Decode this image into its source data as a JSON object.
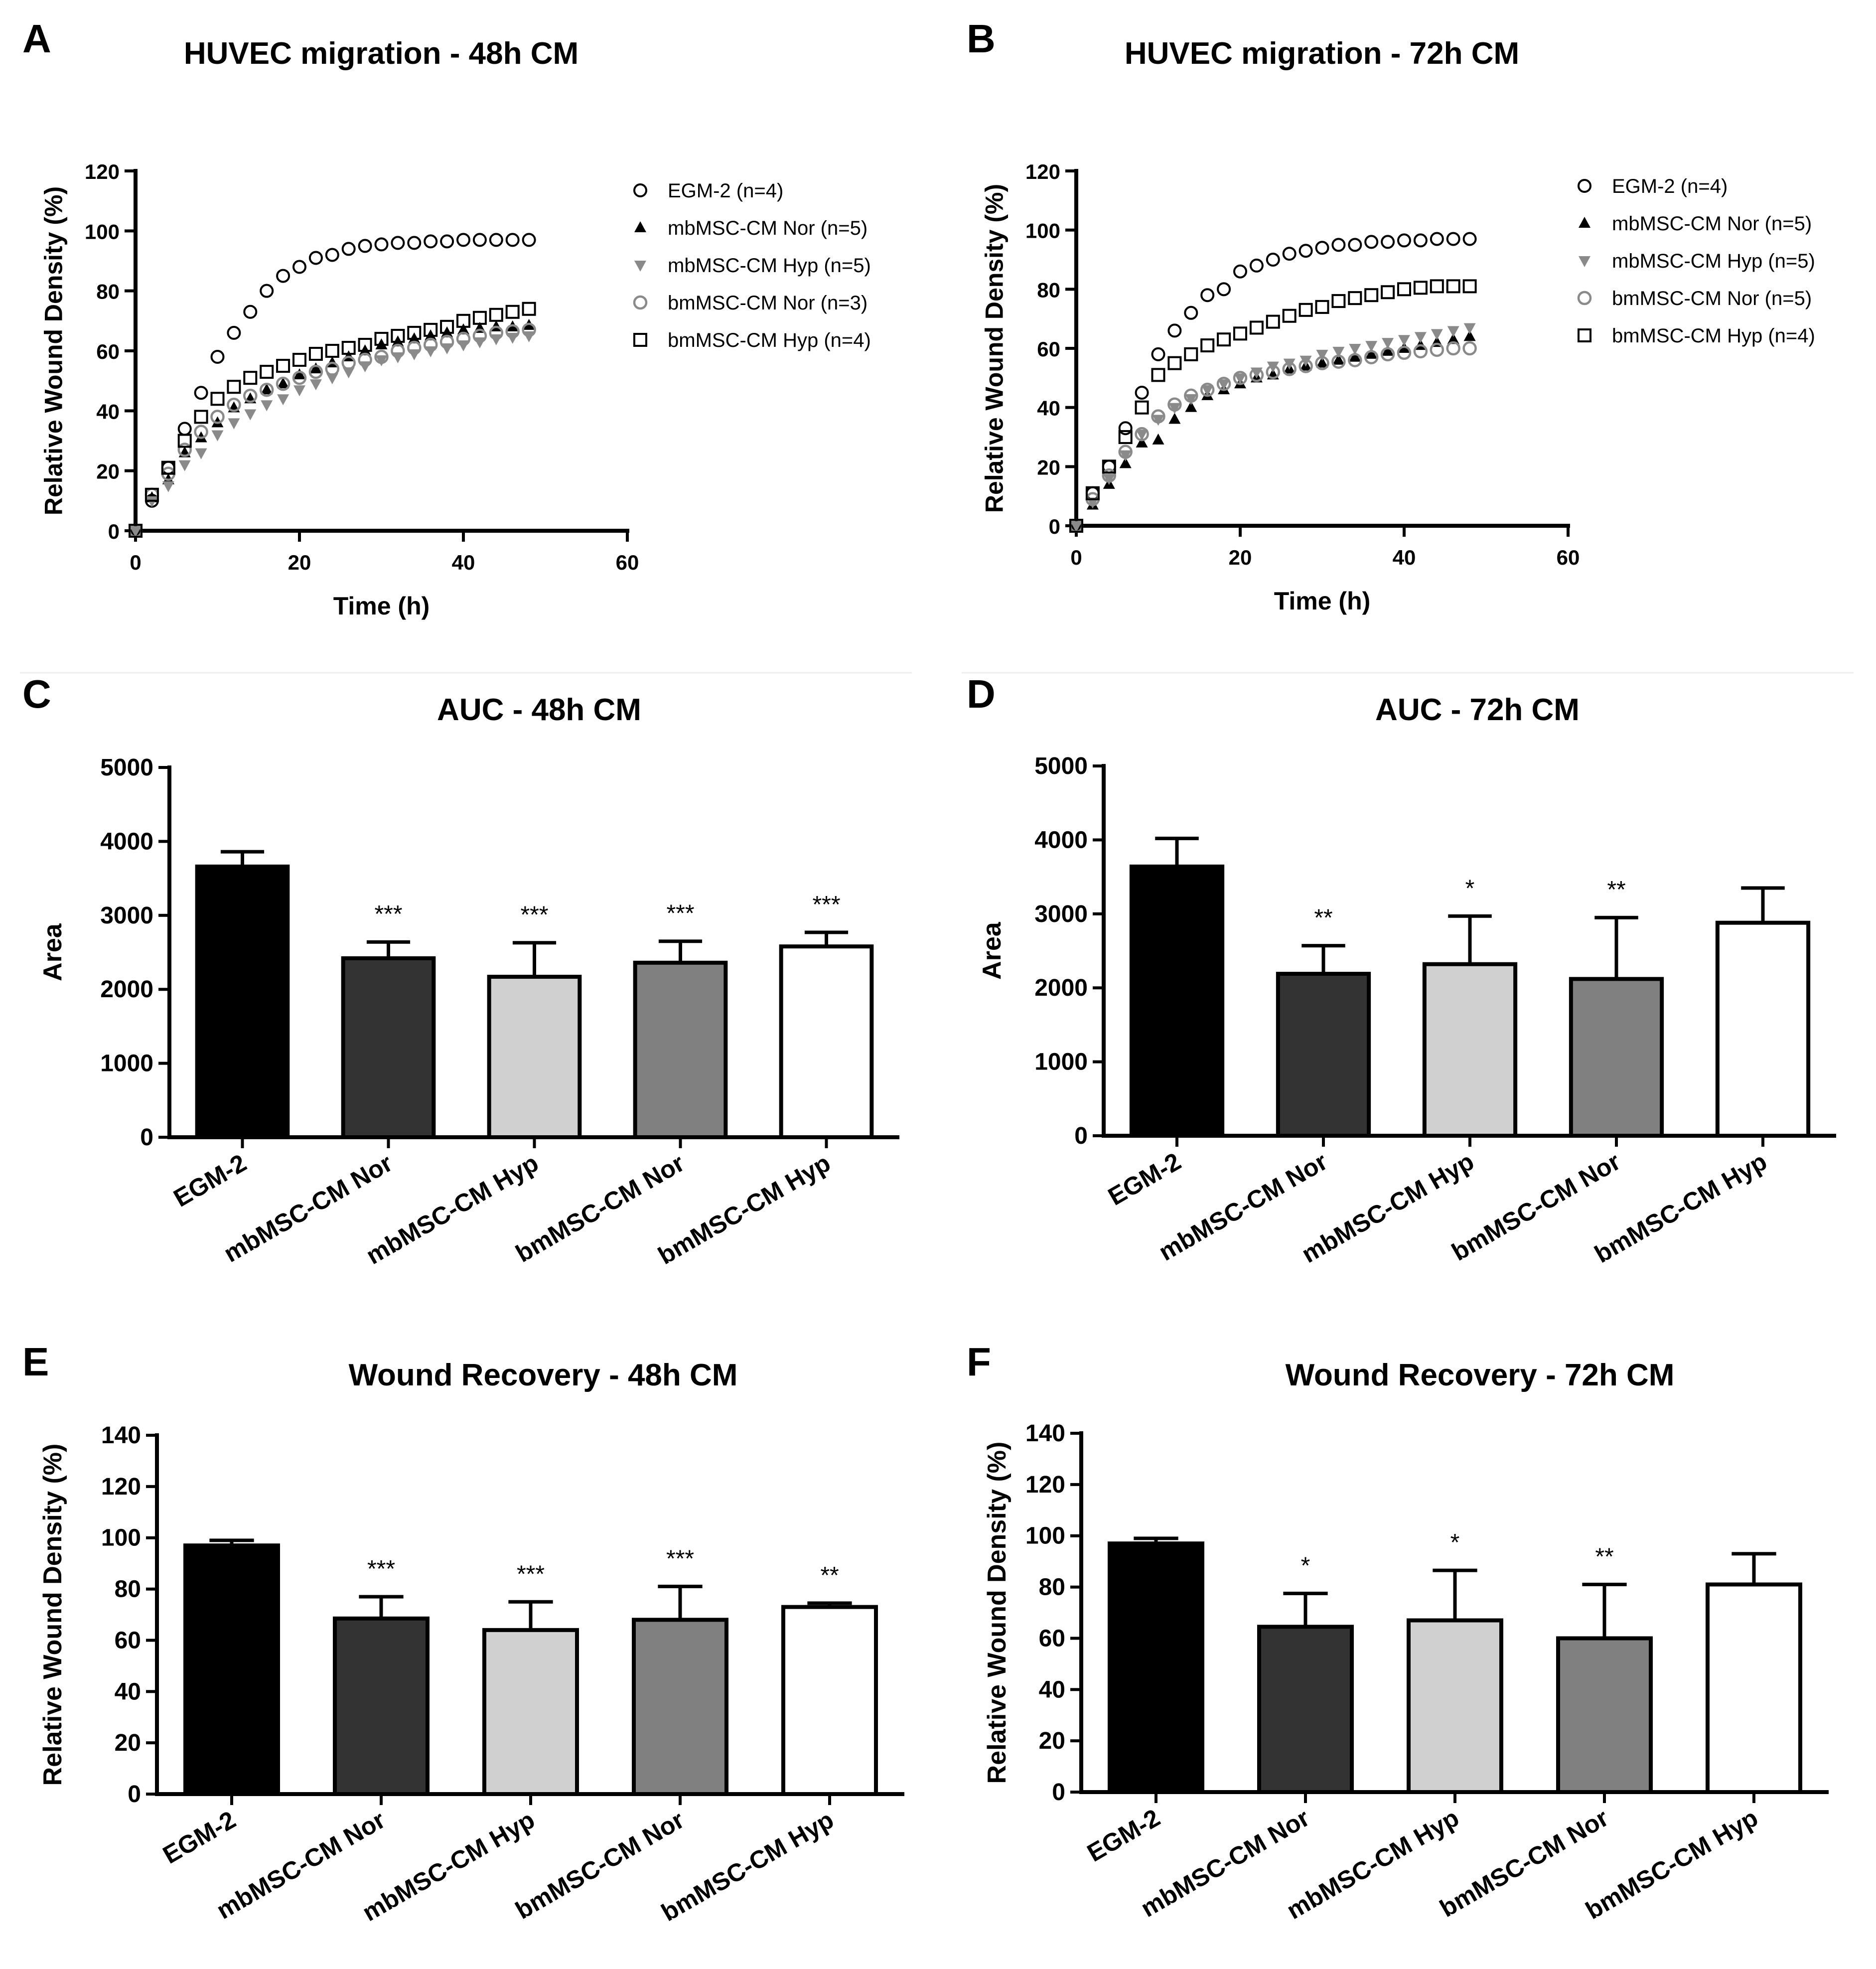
{
  "figure": {
    "background": "#ffffff",
    "group_colors": {
      "EGM-2": "#000000",
      "mbMSC-CM Nor": "#333333",
      "mbMSC-CM Hyp": "#d0d0d0",
      "bmMSC-CM Nor": "#808080",
      "bmMSC-CM Hyp": "#ffffff"
    },
    "marker_styles": {
      "EGM-2": "open-circle-black",
      "mbMSC-CM Nor": "filled-triangle-up-black",
      "mbMSC-CM Hyp": "filled-triangle-down-gray",
      "bmMSC-CM Nor": "open-circle-gray",
      "bmMSC-CM Hyp": "open-square-black"
    }
  },
  "chart_data": [
    {
      "panel": "A",
      "type": "scatter",
      "title": "HUVEC migration  - 48h CM",
      "xlabel": "Time (h)",
      "ylabel": "Relative Wound Density (%)",
      "xlim": [
        0,
        60
      ],
      "ylim": [
        0,
        120
      ],
      "xticks": [
        "0",
        "20",
        "40",
        "60"
      ],
      "yticks": [
        "0",
        "20",
        "40",
        "60",
        "80",
        "100",
        "120"
      ],
      "grid": false,
      "legend_position": "top-right",
      "x": [
        0,
        2,
        4,
        6,
        8,
        10,
        12,
        14,
        16,
        18,
        20,
        22,
        24,
        26,
        28,
        30,
        32,
        34,
        36,
        38,
        40,
        42,
        44,
        46,
        48
      ],
      "series": [
        {
          "name": "EGM-2 (n=4)",
          "marker": "open-circle-black",
          "values": [
            0,
            10,
            21,
            34,
            46,
            58,
            66,
            73,
            80,
            85,
            88,
            91,
            92,
            94,
            95,
            95.5,
            96,
            96,
            96.5,
            96.5,
            97,
            97,
            97,
            97,
            97
          ]
        },
        {
          "name": "mbMSC-CM Nor (n=5)",
          "marker": "filled-triangle-up-black",
          "values": [
            0,
            11,
            17,
            26,
            31,
            36,
            41,
            44,
            47,
            49,
            52,
            54,
            56,
            58,
            60,
            62,
            63,
            64,
            65,
            66,
            67,
            67.5,
            68,
            68,
            68.5
          ]
        },
        {
          "name": "mbMSC-CM Hyp (n=5)",
          "marker": "filled-triangle-down-gray",
          "values": [
            0,
            10,
            15,
            22,
            26,
            32,
            36,
            39,
            42,
            44,
            47,
            49,
            51,
            53,
            55,
            57,
            58,
            59,
            60,
            61,
            62,
            63,
            64,
            64.5,
            65
          ]
        },
        {
          "name": "bmMSC-CM Nor (n=3)",
          "marker": "open-circle-gray",
          "values": [
            0,
            12,
            19,
            27,
            33,
            38,
            42,
            45,
            47,
            49,
            51,
            53,
            54,
            56,
            57,
            58,
            60,
            61,
            62,
            63,
            64,
            65,
            66,
            66.5,
            67
          ]
        },
        {
          "name": "bmMSC-CM Hyp (n=4)",
          "marker": "open-square-black",
          "values": [
            0,
            12,
            21,
            30,
            38,
            44,
            48,
            51,
            53,
            55,
            57,
            59,
            60,
            61,
            62,
            64,
            65,
            66,
            67,
            68,
            70,
            71,
            72,
            73,
            74
          ]
        }
      ]
    },
    {
      "panel": "B",
      "type": "scatter",
      "title": "HUVEC migration - 72h CM",
      "xlabel": "Time (h)",
      "ylabel": "Relative Wound Density (%)",
      "xlim": [
        0,
        60
      ],
      "ylim": [
        0,
        120
      ],
      "xticks": [
        "0",
        "20",
        "40",
        "60"
      ],
      "yticks": [
        "0",
        "20",
        "40",
        "60",
        "80",
        "100",
        "120"
      ],
      "grid": false,
      "legend_position": "top-right",
      "x": [
        0,
        2,
        4,
        6,
        8,
        10,
        12,
        14,
        16,
        18,
        20,
        22,
        24,
        26,
        28,
        30,
        32,
        34,
        36,
        38,
        40,
        42,
        44,
        46,
        48
      ],
      "series": [
        {
          "name": "EGM-2 (n=4)",
          "marker": "open-circle-black",
          "values": [
            0,
            11,
            20,
            33,
            45,
            58,
            66,
            72,
            78,
            80,
            86,
            88,
            90,
            92,
            93,
            94,
            95,
            95,
            96,
            96,
            96.5,
            96.5,
            97,
            97,
            97
          ]
        },
        {
          "name": "mbMSC-CM Nor (n=5)",
          "marker": "filled-triangle-up-black",
          "values": [
            0,
            7,
            14,
            21,
            28,
            29,
            36,
            40,
            44,
            46,
            48,
            50,
            51,
            53,
            54,
            55,
            56,
            57,
            58,
            59,
            60,
            61,
            62,
            63,
            64
          ]
        },
        {
          "name": "mbMSC-CM Hyp (n=5)",
          "marker": "filled-triangle-down-gray",
          "values": [
            0,
            8,
            16,
            24,
            31,
            36,
            40,
            43,
            46,
            48,
            50,
            52,
            54,
            55,
            56,
            58,
            59,
            60,
            61,
            62,
            63,
            64,
            65,
            66,
            67
          ]
        },
        {
          "name": "bmMSC-CM Nor (n=5)",
          "marker": "open-circle-gray",
          "values": [
            0,
            9,
            17,
            25,
            31,
            37,
            41,
            44,
            46,
            48,
            50,
            51,
            52,
            53,
            54,
            55,
            55.5,
            56,
            57,
            58,
            58.5,
            59,
            59.5,
            60,
            60
          ]
        },
        {
          "name": "bmMSC-CM Hyp (n=4)",
          "marker": "open-square-black",
          "values": [
            0,
            11,
            20,
            30,
            40,
            51,
            55,
            58,
            61,
            63,
            65,
            67,
            69,
            71,
            73,
            74,
            76,
            77,
            78,
            79,
            80,
            80.5,
            81,
            81,
            81
          ]
        }
      ]
    },
    {
      "panel": "C",
      "type": "bar",
      "title": "AUC - 48h CM",
      "xlabel": "",
      "ylabel": "Area",
      "ylim": [
        0,
        5000
      ],
      "yticks": [
        "0",
        "1000",
        "2000",
        "3000",
        "4000",
        "5000"
      ],
      "categories": [
        "EGM-2",
        "mbMSC-CM Nor",
        "mbMSC-CM Hyp",
        "bmMSC-CM Nor",
        "bmMSC-CM Hyp"
      ],
      "values": [
        3660,
        2420,
        2170,
        2360,
        2580
      ],
      "error_upper": [
        200,
        220,
        460,
        290,
        190
      ],
      "significance": [
        "",
        "***",
        "***",
        "***",
        "***"
      ]
    },
    {
      "panel": "D",
      "type": "bar",
      "title": "AUC - 72h CM",
      "xlabel": "",
      "ylabel": "Area",
      "ylim": [
        0,
        5000
      ],
      "yticks": [
        "0",
        "1000",
        "2000",
        "3000",
        "4000",
        "5000"
      ],
      "categories": [
        "EGM-2",
        "mbMSC-CM Nor",
        "mbMSC-CM Hyp",
        "bmMSC-CM Nor",
        "bmMSC-CM Hyp"
      ],
      "values": [
        3640,
        2190,
        2320,
        2120,
        2880
      ],
      "error_upper": [
        380,
        380,
        650,
        830,
        470
      ],
      "significance": [
        "",
        "**",
        "*",
        "**",
        ""
      ]
    },
    {
      "panel": "E",
      "type": "bar",
      "title": "Wound Recovery - 48h CM",
      "xlabel": "",
      "ylabel": "Relative Wound Density (%)",
      "ylim": [
        0,
        140
      ],
      "yticks": [
        "0",
        "20",
        "40",
        "60",
        "80",
        "100",
        "120",
        "140"
      ],
      "categories": [
        "EGM-2",
        "mbMSC-CM Nor",
        "mbMSC-CM Hyp",
        "bmMSC-CM Nor",
        "bmMSC-CM Hyp"
      ],
      "values": [
        97,
        68.5,
        64,
        68,
        73
      ],
      "error_upper": [
        2,
        8.5,
        11,
        13,
        1.5
      ],
      "significance": [
        "",
        "***",
        "***",
        "***",
        "**"
      ]
    },
    {
      "panel": "F",
      "type": "bar",
      "title": "Wound Recovery - 72h CM",
      "xlabel": "",
      "ylabel": "Relative Wound Density (%)",
      "ylim": [
        0,
        140
      ],
      "yticks": [
        "0",
        "20",
        "40",
        "60",
        "80",
        "100",
        "120",
        "140"
      ],
      "categories": [
        "EGM-2",
        "mbMSC-CM Nor",
        "mbMSC-CM Hyp",
        "bmMSC-CM Nor",
        "bmMSC-CM Hyp"
      ],
      "values": [
        97,
        64.5,
        67,
        60,
        81
      ],
      "error_upper": [
        2,
        13,
        19.5,
        21,
        12
      ],
      "significance": [
        "",
        "*",
        "*",
        "**",
        ""
      ]
    }
  ]
}
